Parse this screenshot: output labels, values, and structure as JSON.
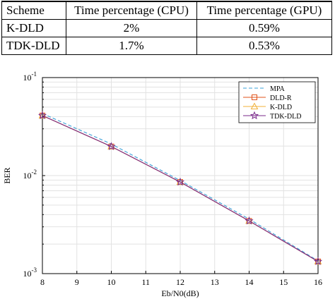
{
  "table": {
    "headers": [
      "Scheme",
      "Time percentage (CPU)",
      "Time percentage (GPU)"
    ],
    "rows": [
      [
        "K-DLD",
        "2%",
        "0.59%"
      ],
      [
        "TDK-DLD",
        "1.7%",
        "0.53%"
      ]
    ]
  },
  "chart_data": {
    "type": "line",
    "title": "",
    "xlabel": "Eb/N0(dB)",
    "ylabel": "BER",
    "xlim": [
      8,
      16
    ],
    "ylim": [
      0.001,
      0.1
    ],
    "yscale": "log",
    "grid": true,
    "legend_position": "top-right",
    "x": [
      8,
      10,
      12,
      14,
      16
    ],
    "x_ticks": [
      "8",
      "9",
      "10",
      "11",
      "12",
      "13",
      "14",
      "15",
      "16"
    ],
    "x_tick_values": [
      8,
      9,
      10,
      11,
      12,
      13,
      14,
      15,
      16
    ],
    "y_ticks": [
      {
        "base": "10",
        "exp": "-1",
        "value": 0.1
      },
      {
        "base": "10",
        "exp": "-2",
        "value": 0.01
      },
      {
        "base": "10",
        "exp": "-3",
        "value": 0.001
      }
    ],
    "series": [
      {
        "name": "MPA",
        "values": [
          0.043,
          0.021,
          0.0089,
          0.0036,
          0.00135
        ],
        "color": "#3aa0d8",
        "dash": true,
        "marker": "none"
      },
      {
        "name": "DLD-R",
        "values": [
          0.041,
          0.0198,
          0.0086,
          0.00345,
          0.00133
        ],
        "color": "#e0531a",
        "dash": false,
        "marker": "square"
      },
      {
        "name": "K-DLD",
        "values": [
          0.041,
          0.0198,
          0.0086,
          0.00345,
          0.00133
        ],
        "color": "#f0b03a",
        "dash": false,
        "marker": "triangle"
      },
      {
        "name": "TDK-DLD",
        "values": [
          0.041,
          0.0198,
          0.0086,
          0.00345,
          0.00133
        ],
        "color": "#7a2a8a",
        "dash": false,
        "marker": "star"
      }
    ]
  }
}
